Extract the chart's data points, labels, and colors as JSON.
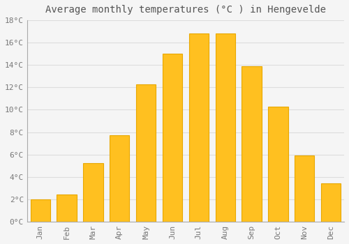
{
  "title": "Average monthly temperatures (°C ) in Hengevelde",
  "months": [
    "Jan",
    "Feb",
    "Mar",
    "Apr",
    "May",
    "Jun",
    "Jul",
    "Aug",
    "Sep",
    "Oct",
    "Nov",
    "Dec"
  ],
  "values": [
    2.0,
    2.4,
    5.2,
    7.7,
    12.3,
    15.0,
    16.8,
    16.8,
    13.9,
    10.3,
    5.9,
    3.4
  ],
  "bar_color": "#FFC020",
  "bar_edge_color": "#E8A800",
  "background_color": "#F5F5F5",
  "grid_color": "#DDDDDD",
  "text_color": "#777777",
  "title_color": "#555555",
  "ylim": [
    0,
    18
  ],
  "yticks": [
    0,
    2,
    4,
    6,
    8,
    10,
    12,
    14,
    16,
    18
  ],
  "title_fontsize": 10,
  "tick_fontsize": 8,
  "font_family": "monospace"
}
